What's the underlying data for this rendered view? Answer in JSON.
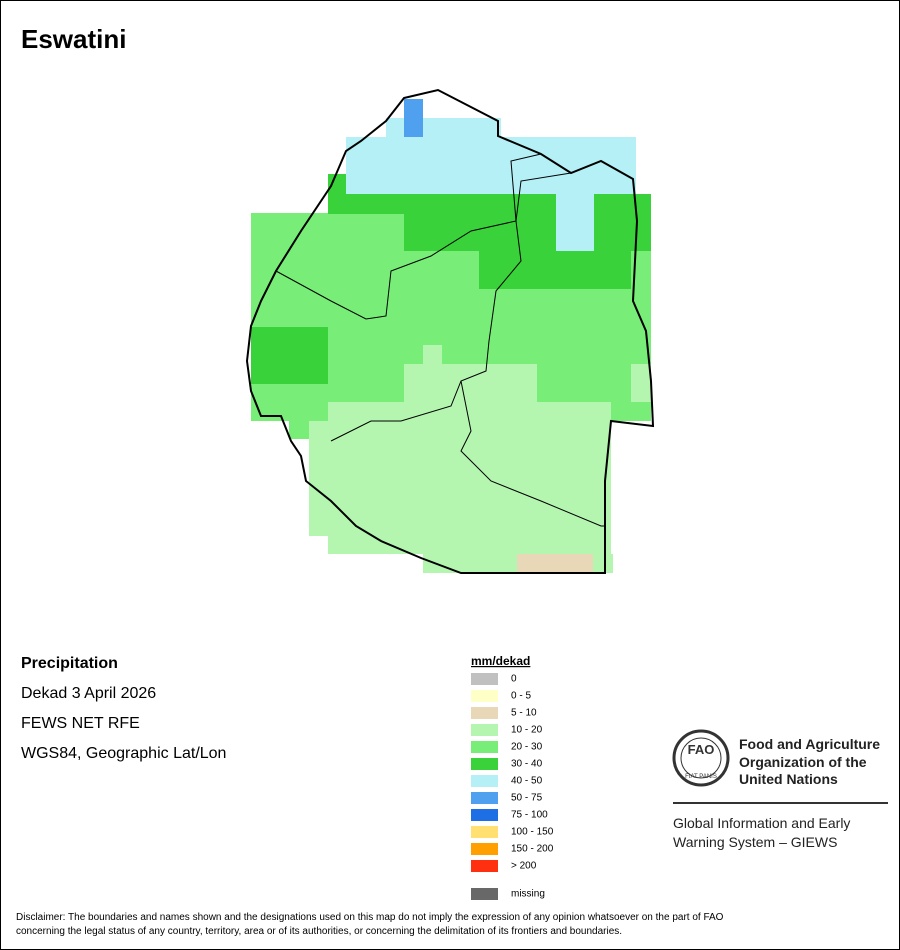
{
  "title": "Eswatini",
  "info": {
    "heading": "Precipitation",
    "lines": [
      "Dekad 3 April 2026",
      "FEWS NET RFE",
      "WGS84, Geographic Lat/Lon"
    ]
  },
  "legend": {
    "title": "mm/dekad",
    "items": [
      {
        "label": "0",
        "color": "#c0c0c0"
      },
      {
        "label": "0 - 5",
        "color": "#ffffc8"
      },
      {
        "label": "5 - 10",
        "color": "#e8d8b8"
      },
      {
        "label": "10 - 20",
        "color": "#b4f5b0"
      },
      {
        "label": "20 - 30",
        "color": "#78ed78"
      },
      {
        "label": "30 - 40",
        "color": "#3ad23a"
      },
      {
        "label": "40 - 50",
        "color": "#b4f0f5"
      },
      {
        "label": "50 - 75",
        "color": "#50a0f0"
      },
      {
        "label": "75 - 100",
        "color": "#1e6ee6"
      },
      {
        "label": "100 - 150",
        "color": "#ffe070"
      },
      {
        "label": "150 - 200",
        "color": "#ffa000"
      },
      {
        "label": "> 200",
        "color": "#ff3010"
      }
    ],
    "missing": {
      "label": "missing",
      "color": "#686868"
    }
  },
  "logo": {
    "emblem": "FAO",
    "motto": "FIAT PANIS",
    "org": [
      "Food and Agriculture",
      "Organization of the",
      "United Nations"
    ],
    "system": [
      "Global Information and Early",
      "Warning System – GIEWS"
    ]
  },
  "disclaimer": [
    "Disclaimer: The boundaries and names shown and the designations used on this map do not imply the expression of any opinion whatsoever on the part of FAO",
    "concerning the legal status of any country, territory, area or of its authorities, or concerning the delimitation of its frontiers and boundaries."
  ]
}
